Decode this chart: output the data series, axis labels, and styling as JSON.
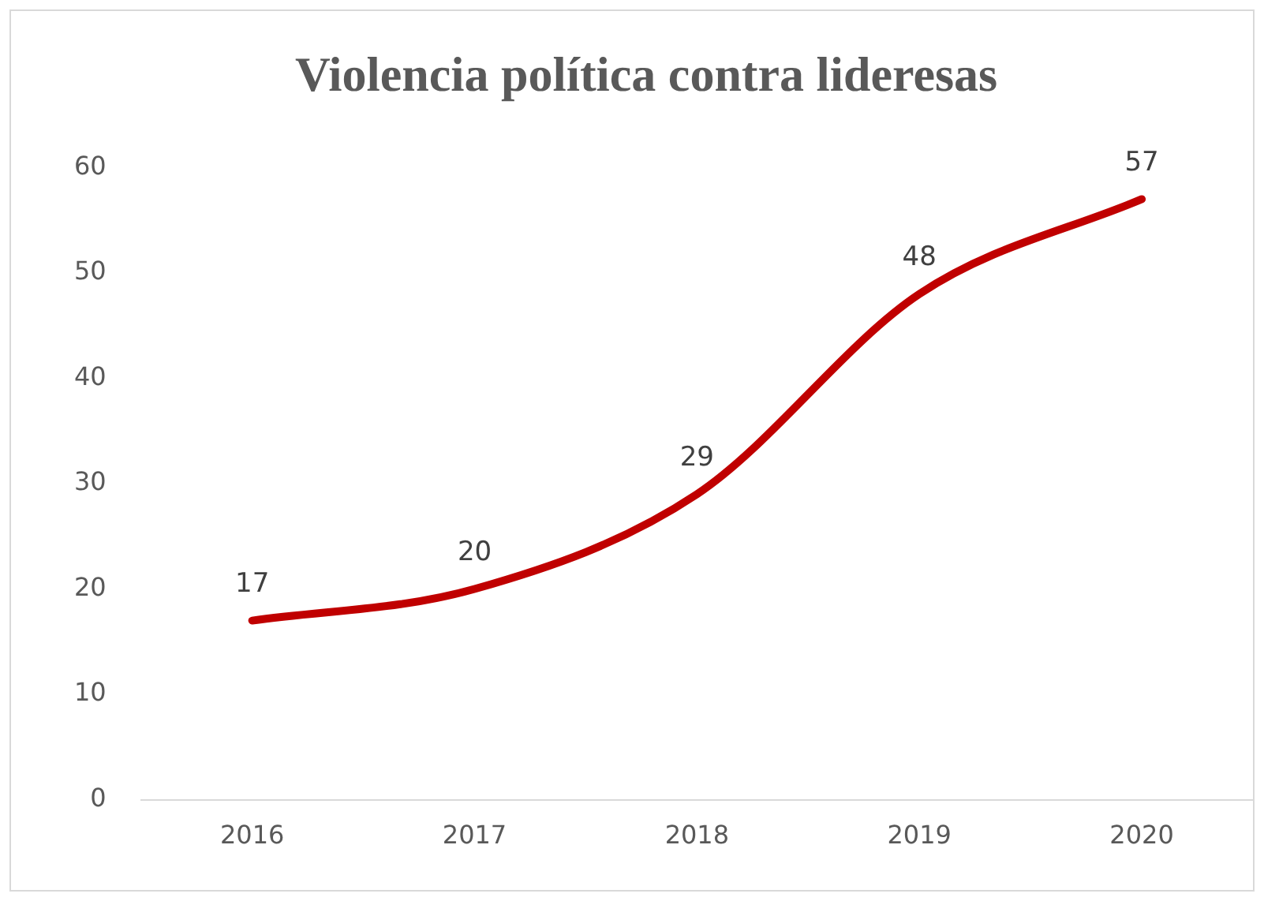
{
  "chart_data": {
    "type": "line",
    "title": "Violencia política contra lideresas",
    "categories": [
      "2016",
      "2017",
      "2018",
      "2019",
      "2020"
    ],
    "values": [
      17,
      20,
      29,
      48,
      57
    ],
    "color": "#c00000",
    "ylim": [
      0,
      60
    ],
    "yticks": [
      0,
      10,
      20,
      30,
      40,
      50,
      60
    ],
    "grid": false,
    "marker": "none",
    "line_style": "solid",
    "data_labels": true
  }
}
